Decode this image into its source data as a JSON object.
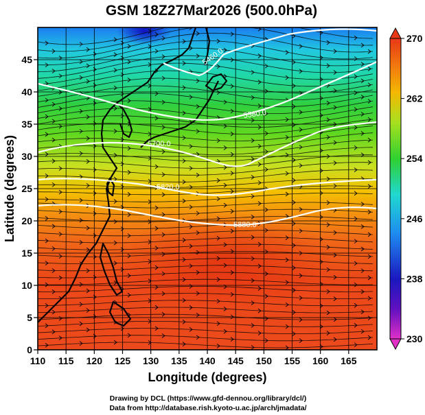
{
  "chart_data": {
    "type": "heatmap",
    "title": "GSM 18Z27Mar2026 (500.0hPa)",
    "xlabel": "Longitude (degrees)",
    "ylabel": "Latitude  (degrees)",
    "xlim": [
      110,
      170
    ],
    "ylim": [
      0,
      50
    ],
    "xticks": [
      110,
      115,
      120,
      125,
      130,
      135,
      140,
      145,
      150,
      155,
      160,
      165
    ],
    "yticks": [
      0,
      5,
      10,
      15,
      20,
      25,
      30,
      35,
      40,
      45
    ],
    "colorbar": {
      "min": 230,
      "max": 270,
      "ticks": [
        230,
        238,
        246,
        254,
        262,
        270
      ],
      "colors": [
        "#e040c0",
        "#2010b0",
        "#1e90ff",
        "#20d8c0",
        "#30d030",
        "#c8e020",
        "#f4b000",
        "#f06010",
        "#e83818"
      ]
    },
    "contours": [
      {
        "label": "5460.0",
        "level": 5460
      },
      {
        "label": "5580.0",
        "level": 5580
      },
      {
        "label": "5700.0",
        "level": 5700
      },
      {
        "label": "5820.0",
        "level": 5820
      },
      {
        "label": "5880.0",
        "level": 5880
      }
    ],
    "credits": [
      "Drawing by DCL (https://www.gfd-dennou.org/library/dcl/)",
      "Data from http://database.rish.kyoto-u.ac.jp/arch/jmadata/"
    ]
  }
}
